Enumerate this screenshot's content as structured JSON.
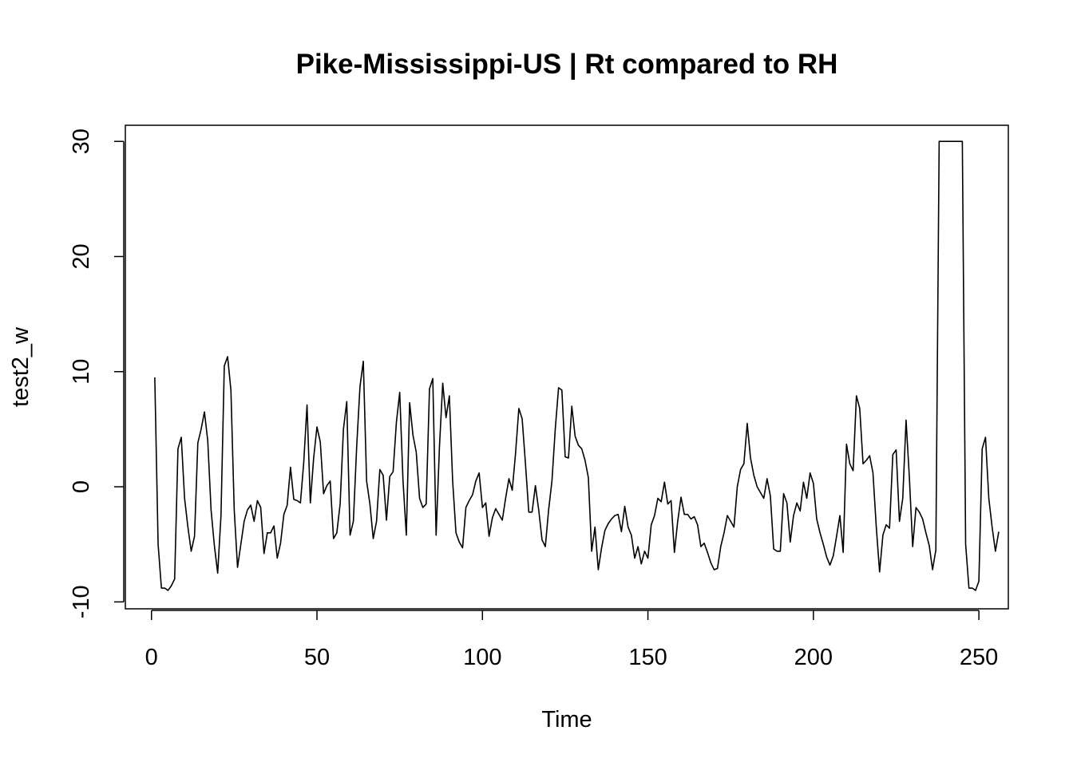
{
  "chart_data": {
    "type": "line",
    "title": "Pike-Mississippi-US | Rt compared to RH",
    "xlabel": "Time",
    "ylabel": "test2_w",
    "xlim": [
      -7.9,
      258.9
    ],
    "ylim": [
      -10.6,
      31.4
    ],
    "x_ticks": [
      0,
      50,
      100,
      150,
      200,
      250
    ],
    "y_ticks": [
      -10,
      0,
      10,
      20,
      30
    ],
    "x_tick_labels": [
      "0",
      "50",
      "100",
      "150",
      "200",
      "250"
    ],
    "y_tick_labels": [
      "-10",
      "0",
      "10",
      "20",
      "30"
    ],
    "grid": false,
    "legend": "none",
    "line_color": "#000000",
    "series": [
      {
        "x_start": 1,
        "x_step": 1,
        "values": [
          9.5,
          -5.0,
          -8.8,
          -8.8,
          -9.0,
          -8.6,
          -8.0,
          3.3,
          4.3,
          -1.0,
          -3.5,
          -5.6,
          -4.3,
          3.8,
          5.0,
          6.5,
          4.0,
          -2.0,
          -5.1,
          -7.5,
          -2.5,
          10.5,
          11.3,
          8.4,
          -2.0,
          -7.0,
          -5.0,
          -3.0,
          -2.0,
          -1.6,
          -3.0,
          -1.2,
          -1.8,
          -5.8,
          -4.0,
          -4.0,
          -3.4,
          -6.2,
          -4.9,
          -2.4,
          -1.6,
          1.7,
          -1.1,
          -1.2,
          -1.4,
          2.1,
          7.1,
          -1.4,
          2.5,
          5.2,
          3.9,
          -0.6,
          0.1,
          0.5,
          -4.5,
          -4.0,
          -1.5,
          5.0,
          7.4,
          -4.2,
          -3.0,
          3.5,
          8.7,
          10.9,
          0.5,
          -1.5,
          -4.5,
          -3.0,
          1.5,
          1.0,
          -2.9,
          0.9,
          1.3,
          5.6,
          8.2,
          0.5,
          -4.2,
          7.3,
          4.5,
          3.0,
          -1.0,
          -1.8,
          -1.5,
          8.5,
          9.4,
          -4.2,
          3.4,
          9.0,
          6.0,
          7.9,
          0.5,
          -4.0,
          -4.8,
          -5.3,
          -1.8,
          -1.2,
          -0.7,
          0.5,
          1.2,
          -1.8,
          -1.4,
          -4.3,
          -2.7,
          -1.9,
          -2.4,
          -2.9,
          -1.0,
          0.7,
          -0.3,
          2.9,
          6.8,
          5.9,
          2.0,
          -2.2,
          -2.2,
          0.1,
          -2.0,
          -4.6,
          -5.2,
          -2.0,
          0.5,
          5.0,
          8.6,
          8.4,
          2.6,
          2.5,
          7.0,
          4.4,
          3.6,
          3.3,
          2.3,
          0.8,
          -5.6,
          -3.5,
          -7.2,
          -5.3,
          -3.8,
          -3.2,
          -2.8,
          -2.5,
          -2.4,
          -3.9,
          -1.7,
          -3.5,
          -4.2,
          -6.2,
          -5.2,
          -6.7,
          -5.6,
          -6.2,
          -3.3,
          -2.5,
          -1.0,
          -1.3,
          0.4,
          -1.5,
          -1.2,
          -5.7,
          -3.0,
          -0.9,
          -2.4,
          -2.4,
          -2.8,
          -2.6,
          -3.3,
          -5.2,
          -4.9,
          -5.7,
          -6.6,
          -7.2,
          -7.1,
          -5.2,
          -4.0,
          -2.5,
          -3.0,
          -3.5,
          0.0,
          1.5,
          2.0,
          5.5,
          2.5,
          1.0,
          0.0,
          -0.5,
          -1.0,
          0.7,
          -0.8,
          -5.4,
          -5.6,
          -5.6,
          -0.6,
          -1.4,
          -4.8,
          -2.5,
          -1.4,
          -2.1,
          0.4,
          -1.0,
          1.2,
          0.3,
          -2.8,
          -4.0,
          -5.0,
          -6.1,
          -6.8,
          -6.0,
          -4.3,
          -2.5,
          -5.7,
          3.7,
          2.0,
          1.4,
          7.9,
          6.8,
          2.0,
          2.3,
          2.7,
          1.2,
          -3.5,
          -7.4,
          -4.2,
          -3.3,
          -3.6,
          2.8,
          3.2,
          -3.0,
          -1.0,
          5.8,
          0.8,
          -5.2,
          -1.8,
          -2.2,
          -2.8,
          -4.0,
          -5.1,
          -7.2,
          -5.5,
          30.0,
          30.0,
          30.0,
          30.0,
          30.0,
          30.0,
          30.0,
          30.0,
          -5.0,
          -8.8,
          -8.8,
          -9.0,
          -8.2,
          3.3,
          4.3,
          -1.0,
          -3.5,
          -5.6,
          -3.9
        ]
      }
    ]
  }
}
